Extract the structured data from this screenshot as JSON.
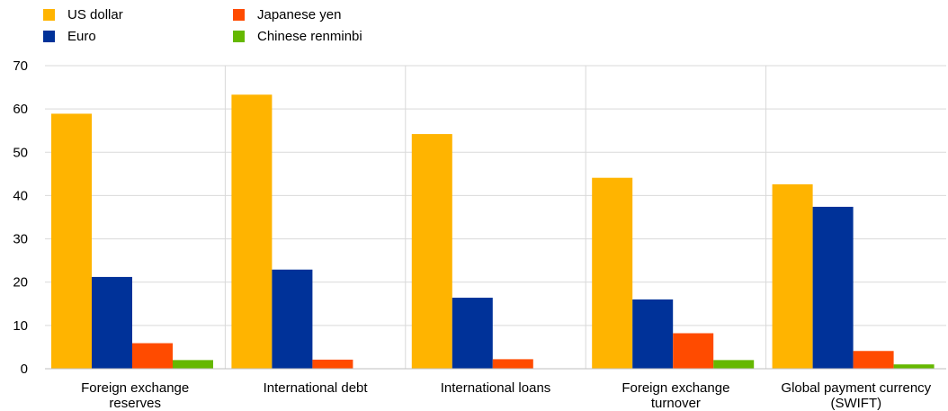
{
  "chart_data": {
    "type": "bar",
    "title": "",
    "xlabel": "",
    "ylabel": "",
    "ylim": [
      0,
      70
    ],
    "yticks": [
      0,
      10,
      20,
      30,
      40,
      50,
      60,
      70
    ],
    "grid": true,
    "legend_position": "top-left",
    "categories": [
      [
        "Foreign exchange",
        "reserves"
      ],
      [
        "International debt"
      ],
      [
        "International loans"
      ],
      [
        "Foreign exchange",
        "turnover"
      ],
      [
        "Global payment currency",
        "(SWIFT)"
      ]
    ],
    "series": [
      {
        "name": "US dollar",
        "color": "#FFB400",
        "values": [
          58.9,
          63.3,
          54.2,
          44.1,
          42.6
        ]
      },
      {
        "name": "Euro",
        "color": "#003299",
        "values": [
          21.2,
          22.9,
          16.4,
          16.0,
          37.4
        ]
      },
      {
        "name": "Japanese yen",
        "color": "#FF4B00",
        "values": [
          5.9,
          2.1,
          2.2,
          8.2,
          4.1
        ]
      },
      {
        "name": "Chinese renminbi",
        "color": "#65B800",
        "values": [
          2.0,
          0,
          0,
          2.0,
          1.0
        ]
      }
    ]
  }
}
